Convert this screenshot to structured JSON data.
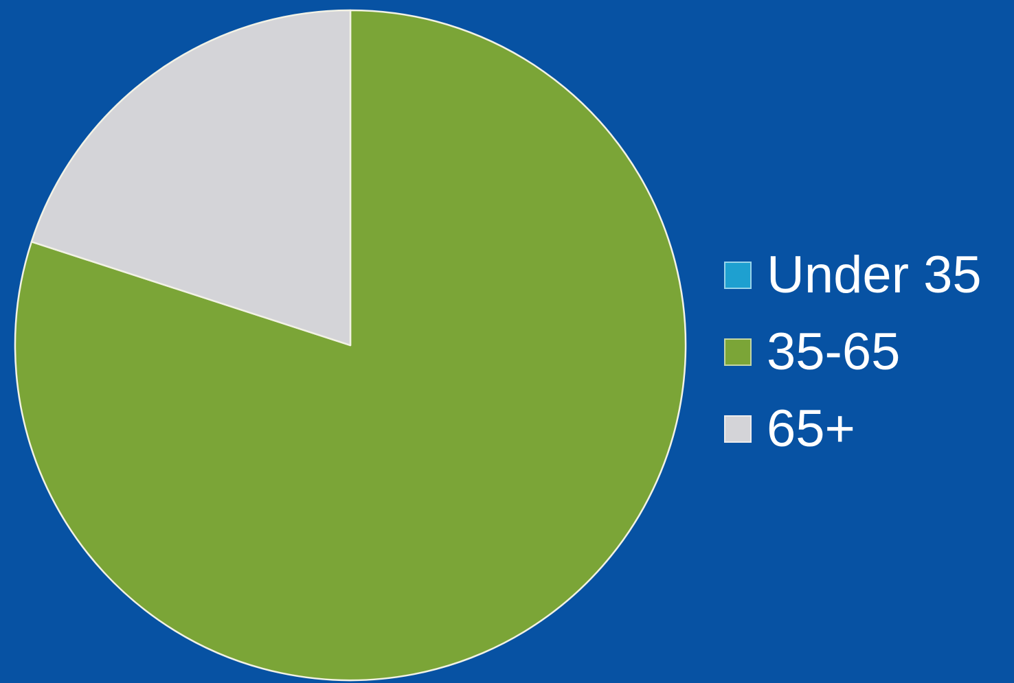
{
  "chart_data": {
    "type": "pie",
    "categories": [
      "Under 35",
      "35-65",
      "65+"
    ],
    "values": [
      0,
      80,
      20
    ],
    "colors": [
      "#1ea0d0",
      "#7ba537",
      "#d4d4d8"
    ],
    "start_angle_deg": 0,
    "direction": "clockwise",
    "slice_border_color": "#f2f2e6",
    "background_color": "#0752a3",
    "legend": {
      "placement": "right",
      "entries": [
        "Under 35",
        "35-65",
        "65+"
      ]
    }
  }
}
